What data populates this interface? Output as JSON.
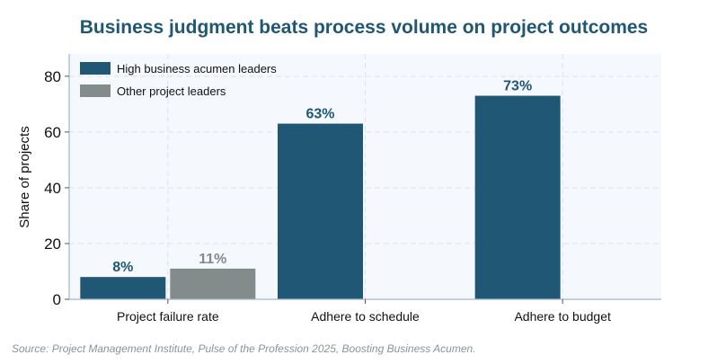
{
  "chart_data": {
    "type": "bar",
    "title": "Business judgment beats process volume on project outcomes",
    "xlabel": "",
    "ylabel": "Share of projects",
    "categories": [
      "Project failure rate",
      "Adhere to schedule",
      "Adhere to budget"
    ],
    "series": [
      {
        "name": "High business acumen leaders",
        "values": [
          8,
          63,
          73
        ],
        "color": "#1f5775"
      },
      {
        "name": "Other project leaders",
        "values": [
          11,
          null,
          null
        ],
        "color": "#838b8b"
      }
    ],
    "data_labels": [
      [
        "8%",
        "63%",
        "73%"
      ],
      [
        "11%",
        null,
        null
      ]
    ],
    "ylim": [
      0,
      88
    ],
    "yticks": [
      0,
      20,
      40,
      60,
      80
    ],
    "grid": true,
    "legend_position": "top-left",
    "source": "Source: Project Management Institute, Pulse of the Profession 2025, Boosting Business Acumen."
  },
  "colors": {
    "plot_background": "#f5f8fc",
    "grid": "#dde4ec",
    "axis": "#9fb8cc",
    "title": "#1f5775",
    "source": "#8a939b"
  }
}
